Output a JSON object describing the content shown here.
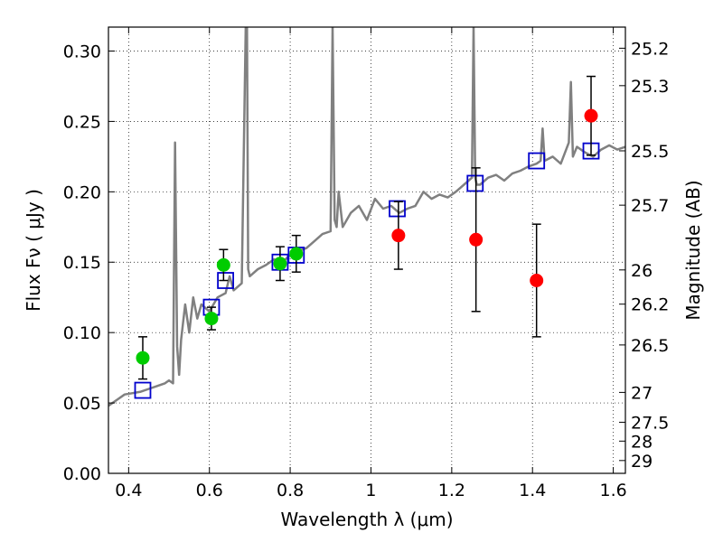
{
  "chart_data": {
    "type": "scatter",
    "xlabel": "Wavelength  λ (μm)",
    "ylabel": "Flux  Fν  ( μJy )",
    "ylabel_right": "Magnitude (AB)",
    "xlim": [
      0.35,
      1.63
    ],
    "ylim": [
      0.0,
      0.317
    ],
    "grid": true,
    "x_ticks": [
      0.4,
      0.6,
      0.8,
      1.0,
      1.2,
      1.4,
      1.6
    ],
    "x_tick_labels": [
      "0.4",
      "0.6",
      "0.8",
      "1",
      "1.2",
      "1.4",
      "1.6"
    ],
    "y_ticks": [
      0.0,
      0.05,
      0.1,
      0.15,
      0.2,
      0.25,
      0.3
    ],
    "y_tick_labels": [
      "0.00",
      "0.05",
      "0.10",
      "0.15",
      "0.20",
      "0.25",
      "0.30"
    ],
    "right_ticks": [
      {
        "label": "25.2",
        "flux": 0.302
      },
      {
        "label": "25.3",
        "flux": 0.2754
      },
      {
        "label": "25.5",
        "flux": 0.2291
      },
      {
        "label": "25.7",
        "flux": 0.1905
      },
      {
        "label": "26",
        "flux": 0.1445
      },
      {
        "label": "26.2",
        "flux": 0.1202
      },
      {
        "label": "26.5",
        "flux": 0.0912
      },
      {
        "label": "27",
        "flux": 0.0575
      },
      {
        "label": "27.5",
        "flux": 0.0363
      },
      {
        "label": "28",
        "flux": 0.0229
      },
      {
        "label": "29",
        "flux": 0.0091
      }
    ],
    "series": [
      {
        "kind": "line",
        "color": "#808080",
        "x": [
          0.35,
          0.37,
          0.39,
          0.41,
          0.43,
          0.45,
          0.47,
          0.49,
          0.5,
          0.51,
          0.515,
          0.52,
          0.525,
          0.53,
          0.54,
          0.55,
          0.56,
          0.57,
          0.58,
          0.6,
          0.62,
          0.64,
          0.65,
          0.66,
          0.68,
          0.69,
          0.693,
          0.696,
          0.7,
          0.72,
          0.74,
          0.76,
          0.78,
          0.8,
          0.82,
          0.84,
          0.86,
          0.88,
          0.9,
          0.905,
          0.91,
          0.915,
          0.92,
          0.93,
          0.95,
          0.97,
          0.99,
          1.01,
          1.03,
          1.05,
          1.07,
          1.09,
          1.11,
          1.13,
          1.15,
          1.17,
          1.19,
          1.21,
          1.23,
          1.25,
          1.254,
          1.258,
          1.262,
          1.27,
          1.29,
          1.31,
          1.33,
          1.35,
          1.37,
          1.39,
          1.41,
          1.42,
          1.425,
          1.43,
          1.45,
          1.47,
          1.49,
          1.495,
          1.5,
          1.51,
          1.53,
          1.55,
          1.57,
          1.59,
          1.61,
          1.63
        ],
        "y": [
          0.048,
          0.052,
          0.056,
          0.057,
          0.058,
          0.06,
          0.062,
          0.064,
          0.066,
          0.064,
          0.235,
          0.09,
          0.07,
          0.095,
          0.12,
          0.1,
          0.125,
          0.11,
          0.12,
          0.115,
          0.125,
          0.128,
          0.14,
          0.13,
          0.135,
          0.317,
          0.317,
          0.145,
          0.14,
          0.145,
          0.148,
          0.152,
          0.15,
          0.155,
          0.158,
          0.16,
          0.165,
          0.17,
          0.172,
          0.317,
          0.18,
          0.175,
          0.2,
          0.175,
          0.185,
          0.19,
          0.18,
          0.195,
          0.188,
          0.19,
          0.185,
          0.188,
          0.19,
          0.2,
          0.195,
          0.198,
          0.196,
          0.2,
          0.205,
          0.21,
          0.317,
          0.21,
          0.205,
          0.205,
          0.21,
          0.212,
          0.208,
          0.213,
          0.215,
          0.218,
          0.22,
          0.222,
          0.245,
          0.222,
          0.225,
          0.22,
          0.235,
          0.278,
          0.225,
          0.232,
          0.228,
          0.225,
          0.23,
          0.233,
          0.23,
          0.232
        ]
      },
      {
        "kind": "squares",
        "color": "#0000cc",
        "x": [
          0.435,
          0.605,
          0.64,
          0.775,
          0.815,
          1.065,
          1.258,
          1.41,
          1.545
        ],
        "y": [
          0.059,
          0.118,
          0.137,
          0.15,
          0.155,
          0.188,
          0.206,
          0.222,
          0.229
        ]
      },
      {
        "kind": "points",
        "color": "#00cc00",
        "x": [
          0.435,
          0.605,
          0.635,
          0.775,
          0.815
        ],
        "y": [
          0.082,
          0.11,
          0.148,
          0.149,
          0.156
        ],
        "err": [
          0.015,
          0.008,
          0.011,
          0.012,
          0.013
        ]
      },
      {
        "kind": "points",
        "color": "#ff0000",
        "x": [
          1.068,
          1.26,
          1.41,
          1.545
        ],
        "y": [
          0.169,
          0.166,
          0.137,
          0.254
        ],
        "err": [
          0.024,
          0.051,
          0.04,
          0.028
        ]
      }
    ]
  }
}
